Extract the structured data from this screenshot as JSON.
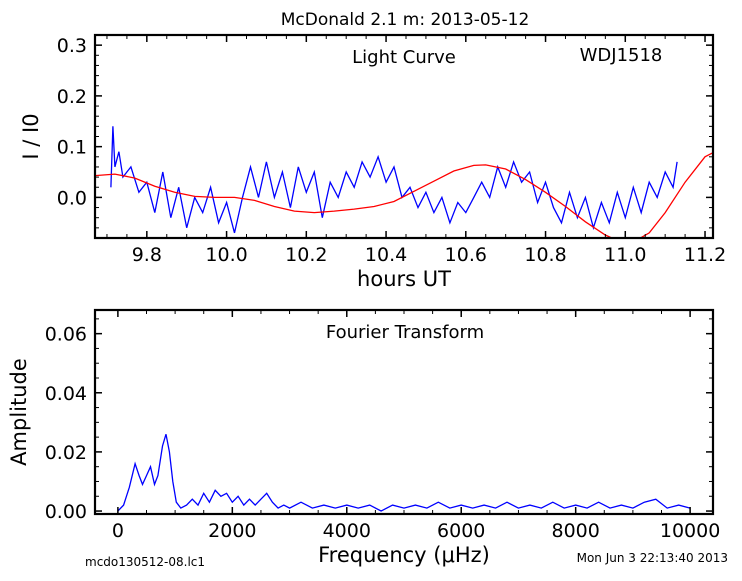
{
  "figure_title": "McDonald 2.1 m:  2013-05-12",
  "footer_left": "mcdo130512-08.lc1",
  "footer_right": "Mon Jun  3 22:13:40 2013",
  "chart_data": [
    {
      "type": "line",
      "title": "Light Curve",
      "annotation": "WDJ1518",
      "xlabel": "hours UT",
      "ylabel": "I / I0",
      "xlim": [
        9.67,
        11.22
      ],
      "ylim": [
        -0.08,
        0.32
      ],
      "xticks": [
        9.8,
        10.0,
        10.2,
        10.4,
        10.6,
        10.8,
        11.0,
        11.2
      ],
      "xtick_labels": [
        "9.8",
        "10.0",
        "10.2",
        "10.4",
        "10.6",
        "10.8",
        "11.0",
        "11.2"
      ],
      "yticks": [
        0.0,
        0.1,
        0.2,
        0.3
      ],
      "ytick_labels": [
        "0.0",
        "0.1",
        "0.2",
        "0.3"
      ],
      "grid": false,
      "series": [
        {
          "color": "#0000ff",
          "points": [
            [
              9.71,
              0.02
            ],
            [
              9.715,
              0.14
            ],
            [
              9.72,
              0.06
            ],
            [
              9.73,
              0.09
            ],
            [
              9.74,
              0.04
            ],
            [
              9.76,
              0.06
            ],
            [
              9.78,
              0.01
            ],
            [
              9.8,
              0.03
            ],
            [
              9.82,
              -0.03
            ],
            [
              9.84,
              0.05
            ],
            [
              9.86,
              -0.04
            ],
            [
              9.88,
              0.02
            ],
            [
              9.9,
              -0.06
            ],
            [
              9.92,
              0.0
            ],
            [
              9.94,
              -0.03
            ],
            [
              9.96,
              0.02
            ],
            [
              9.98,
              -0.05
            ],
            [
              10.0,
              -0.01
            ],
            [
              10.02,
              -0.07
            ],
            [
              10.04,
              0.0
            ],
            [
              10.06,
              0.06
            ],
            [
              10.08,
              0.0
            ],
            [
              10.1,
              0.07
            ],
            [
              10.12,
              0.0
            ],
            [
              10.14,
              0.05
            ],
            [
              10.16,
              -0.02
            ],
            [
              10.18,
              0.06
            ],
            [
              10.2,
              0.01
            ],
            [
              10.22,
              0.05
            ],
            [
              10.24,
              -0.04
            ],
            [
              10.26,
              0.03
            ],
            [
              10.28,
              0.0
            ],
            [
              10.3,
              0.05
            ],
            [
              10.32,
              0.02
            ],
            [
              10.34,
              0.07
            ],
            [
              10.36,
              0.04
            ],
            [
              10.38,
              0.08
            ],
            [
              10.4,
              0.03
            ],
            [
              10.42,
              0.06
            ],
            [
              10.44,
              0.0
            ],
            [
              10.46,
              0.02
            ],
            [
              10.48,
              -0.02
            ],
            [
              10.5,
              0.01
            ],
            [
              10.52,
              -0.03
            ],
            [
              10.54,
              0.0
            ],
            [
              10.56,
              -0.05
            ],
            [
              10.58,
              -0.01
            ],
            [
              10.6,
              -0.03
            ],
            [
              10.62,
              0.0
            ],
            [
              10.64,
              0.03
            ],
            [
              10.66,
              0.0
            ],
            [
              10.68,
              0.06
            ],
            [
              10.7,
              0.02
            ],
            [
              10.72,
              0.07
            ],
            [
              10.74,
              0.03
            ],
            [
              10.76,
              0.05
            ],
            [
              10.78,
              -0.01
            ],
            [
              10.8,
              0.03
            ],
            [
              10.82,
              -0.02
            ],
            [
              10.84,
              -0.05
            ],
            [
              10.86,
              0.01
            ],
            [
              10.88,
              -0.04
            ],
            [
              10.9,
              0.0
            ],
            [
              10.92,
              -0.06
            ],
            [
              10.94,
              -0.01
            ],
            [
              10.96,
              -0.05
            ],
            [
              10.98,
              0.01
            ],
            [
              11.0,
              -0.04
            ],
            [
              11.02,
              0.02
            ],
            [
              11.04,
              -0.03
            ],
            [
              11.06,
              0.03
            ],
            [
              11.08,
              0.0
            ],
            [
              11.1,
              0.05
            ],
            [
              11.12,
              0.02
            ],
            [
              11.13,
              0.07
            ]
          ]
        },
        {
          "color": "#ff0000",
          "points": [
            [
              9.67,
              0.043
            ],
            [
              9.72,
              0.046
            ],
            [
              9.77,
              0.038
            ],
            [
              9.82,
              0.022
            ],
            [
              9.87,
              0.01
            ],
            [
              9.92,
              0.002
            ],
            [
              9.97,
              0.0
            ],
            [
              10.02,
              0.0
            ],
            [
              10.07,
              -0.006
            ],
            [
              10.12,
              -0.018
            ],
            [
              10.17,
              -0.027
            ],
            [
              10.22,
              -0.03
            ],
            [
              10.27,
              -0.027
            ],
            [
              10.32,
              -0.023
            ],
            [
              10.37,
              -0.018
            ],
            [
              10.42,
              -0.008
            ],
            [
              10.47,
              0.012
            ],
            [
              10.52,
              0.032
            ],
            [
              10.57,
              0.052
            ],
            [
              10.62,
              0.063
            ],
            [
              10.65,
              0.064
            ],
            [
              10.7,
              0.056
            ],
            [
              10.75,
              0.035
            ],
            [
              10.8,
              0.01
            ],
            [
              10.85,
              -0.018
            ],
            [
              10.9,
              -0.048
            ],
            [
              10.95,
              -0.074
            ],
            [
              10.98,
              -0.085
            ],
            [
              11.02,
              -0.088
            ],
            [
              11.06,
              -0.07
            ],
            [
              11.1,
              -0.03
            ],
            [
              11.15,
              0.03
            ],
            [
              11.2,
              0.08
            ],
            [
              11.22,
              0.088
            ]
          ]
        }
      ]
    },
    {
      "type": "line",
      "title": "Fourier Transform",
      "xlabel": "Frequency (μHz)",
      "ylabel": "Amplitude",
      "xlim": [
        -400,
        10400
      ],
      "ylim": [
        -0.001,
        0.068
      ],
      "xticks": [
        0,
        2000,
        4000,
        6000,
        8000,
        10000
      ],
      "xtick_labels": [
        "0",
        "2000",
        "4000",
        "6000",
        "8000",
        "10000"
      ],
      "yticks": [
        0.0,
        0.02,
        0.04,
        0.06
      ],
      "ytick_labels": [
        "0.00",
        "0.02",
        "0.04",
        "0.06"
      ],
      "grid": false,
      "series": [
        {
          "color": "#0000ff",
          "points": [
            [
              0,
              0.0
            ],
            [
              100,
              0.002
            ],
            [
              200,
              0.008
            ],
            [
              300,
              0.016
            ],
            [
              370,
              0.012
            ],
            [
              430,
              0.009
            ],
            [
              500,
              0.012
            ],
            [
              570,
              0.015
            ],
            [
              640,
              0.009
            ],
            [
              700,
              0.012
            ],
            [
              780,
              0.022
            ],
            [
              840,
              0.026
            ],
            [
              900,
              0.02
            ],
            [
              960,
              0.01
            ],
            [
              1020,
              0.003
            ],
            [
              1100,
              0.001
            ],
            [
              1200,
              0.002
            ],
            [
              1300,
              0.004
            ],
            [
              1400,
              0.002
            ],
            [
              1500,
              0.006
            ],
            [
              1600,
              0.003
            ],
            [
              1700,
              0.007
            ],
            [
              1800,
              0.005
            ],
            [
              1900,
              0.006
            ],
            [
              2000,
              0.003
            ],
            [
              2100,
              0.005
            ],
            [
              2200,
              0.002
            ],
            [
              2300,
              0.004
            ],
            [
              2400,
              0.002
            ],
            [
              2500,
              0.004
            ],
            [
              2600,
              0.006
            ],
            [
              2700,
              0.003
            ],
            [
              2800,
              0.001
            ],
            [
              2900,
              0.002
            ],
            [
              3000,
              0.001
            ],
            [
              3200,
              0.003
            ],
            [
              3400,
              0.001
            ],
            [
              3600,
              0.002
            ],
            [
              3800,
              0.001
            ],
            [
              4000,
              0.002
            ],
            [
              4200,
              0.001
            ],
            [
              4400,
              0.002
            ],
            [
              4600,
              0.0
            ],
            [
              4800,
              0.002
            ],
            [
              5000,
              0.001
            ],
            [
              5200,
              0.002
            ],
            [
              5400,
              0.001
            ],
            [
              5600,
              0.003
            ],
            [
              5800,
              0.001
            ],
            [
              6000,
              0.002
            ],
            [
              6200,
              0.001
            ],
            [
              6400,
              0.002
            ],
            [
              6600,
              0.001
            ],
            [
              6800,
              0.003
            ],
            [
              7000,
              0.001
            ],
            [
              7200,
              0.002
            ],
            [
              7400,
              0.001
            ],
            [
              7600,
              0.003
            ],
            [
              7800,
              0.001
            ],
            [
              8000,
              0.002
            ],
            [
              8200,
              0.001
            ],
            [
              8400,
              0.003
            ],
            [
              8600,
              0.001
            ],
            [
              8800,
              0.002
            ],
            [
              9000,
              0.001
            ],
            [
              9200,
              0.003
            ],
            [
              9400,
              0.004
            ],
            [
              9600,
              0.001
            ],
            [
              9800,
              0.002
            ],
            [
              10000,
              0.001
            ]
          ]
        }
      ]
    }
  ]
}
